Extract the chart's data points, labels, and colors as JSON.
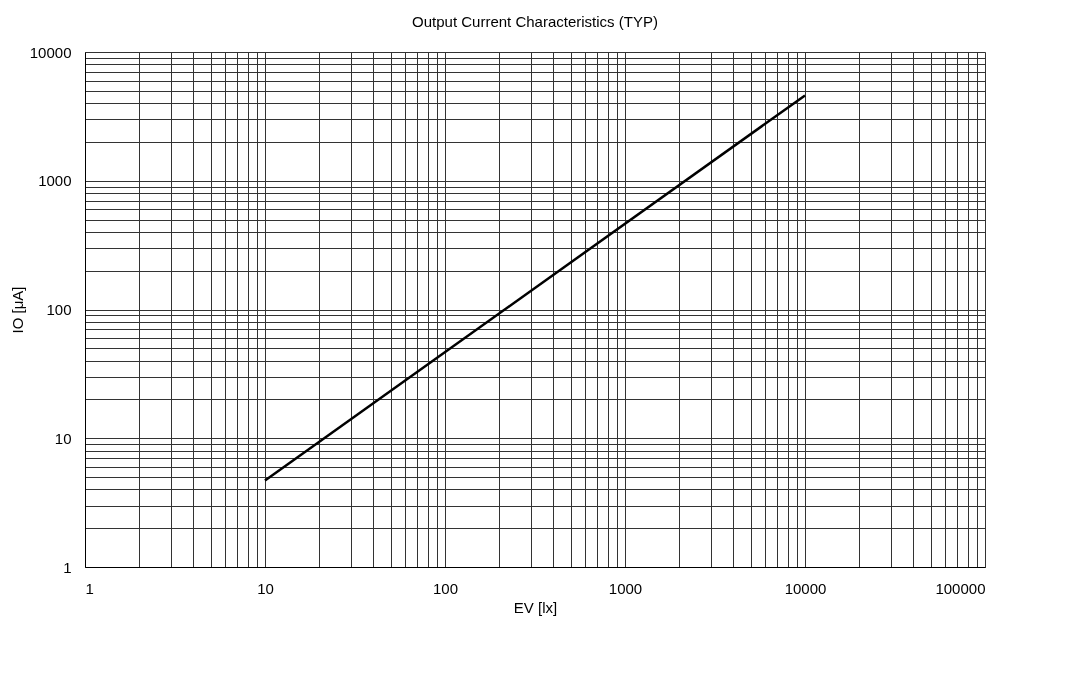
{
  "chart_data": {
    "type": "line",
    "title": "Output Current Characteristics (TYP)",
    "xlabel": "EV [lx]",
    "ylabel": "IO [μA]",
    "x": [
      10,
      10000
    ],
    "series": [
      {
        "color": "#000000",
        "values": [
          4.7,
          4600
        ]
      }
    ],
    "log": "xy",
    "grid": true,
    "marker": "none",
    "line_style": "solid",
    "xlim": [
      1,
      100000
    ],
    "ylim": [
      1,
      10000
    ],
    "xticks": [
      1,
      {
        "value": 2,
        "label": null
      },
      {
        "value": 3,
        "label": null
      },
      {
        "value": 4,
        "label": null
      },
      {
        "value": 5,
        "label": null
      },
      {
        "value": 6,
        "label": null
      },
      {
        "value": 7,
        "label": null
      },
      {
        "value": 8,
        "label": null
      },
      {
        "value": 9,
        "label": null
      },
      10,
      {
        "value": 20,
        "label": null
      },
      {
        "value": 30,
        "label": null
      },
      {
        "value": 40,
        "label": null
      },
      {
        "value": 50,
        "label": null
      },
      {
        "value": 60,
        "label": null
      },
      {
        "value": 70,
        "label": null
      },
      {
        "value": 80,
        "label": null
      },
      {
        "value": 90,
        "label": null
      },
      100,
      {
        "value": 200,
        "label": null
      },
      {
        "value": 300,
        "label": null
      },
      {
        "value": 400,
        "label": null
      },
      {
        "value": 500,
        "label": null
      },
      {
        "value": 600,
        "label": null
      },
      {
        "value": 700,
        "label": null
      },
      {
        "value": 800,
        "label": null
      },
      {
        "value": 900,
        "label": null
      },
      1000,
      {
        "value": 2000,
        "label": null
      },
      {
        "value": 3000,
        "label": null
      },
      {
        "value": 4000,
        "label": null
      },
      {
        "value": 5000,
        "label": null
      },
      {
        "value": 6000,
        "label": null
      },
      {
        "value": 7000,
        "label": null
      },
      {
        "value": 8000,
        "label": null
      },
      {
        "value": 9000,
        "label": null
      },
      10000,
      {
        "value": 20000,
        "label": null
      },
      {
        "value": 30000,
        "label": null
      },
      {
        "value": 40000,
        "label": null
      },
      {
        "value": 50000,
        "label": null
      },
      {
        "value": 60000,
        "label": null
      },
      {
        "value": 70000,
        "label": null
      },
      {
        "value": 80000,
        "label": null
      },
      {
        "value": 90000,
        "label": null
      },
      100000
    ],
    "yticks": [
      1,
      {
        "value": 2,
        "label": null
      },
      {
        "value": 3,
        "label": null
      },
      {
        "value": 4,
        "label": null
      },
      {
        "value": 5,
        "label": null
      },
      {
        "value": 6,
        "label": null
      },
      {
        "value": 7,
        "label": null
      },
      {
        "value": 8,
        "label": null
      },
      {
        "value": 9,
        "label": null
      },
      10,
      {
        "value": 20,
        "label": null
      },
      {
        "value": 30,
        "label": null
      },
      {
        "value": 40,
        "label": null
      },
      {
        "value": 50,
        "label": null
      },
      {
        "value": 60,
        "label": null
      },
      {
        "value": 70,
        "label": null
      },
      {
        "value": 80,
        "label": null
      },
      {
        "value": 90,
        "label": null
      },
      100,
      {
        "value": 200,
        "label": null
      },
      {
        "value": 300,
        "label": null
      },
      {
        "value": 400,
        "label": null
      },
      {
        "value": 500,
        "label": null
      },
      {
        "value": 600,
        "label": null
      },
      {
        "value": 700,
        "label": null
      },
      {
        "value": 800,
        "label": null
      },
      {
        "value": 900,
        "label": null
      },
      1000,
      {
        "value": 2000,
        "label": null
      },
      {
        "value": 3000,
        "label": null
      },
      {
        "value": 4000,
        "label": null
      },
      {
        "value": 5000,
        "label": null
      },
      {
        "value": 6000,
        "label": null
      },
      {
        "value": 7000,
        "label": null
      },
      {
        "value": 8000,
        "label": null
      },
      {
        "value": 9000,
        "label": null
      },
      10000
    ]
  }
}
